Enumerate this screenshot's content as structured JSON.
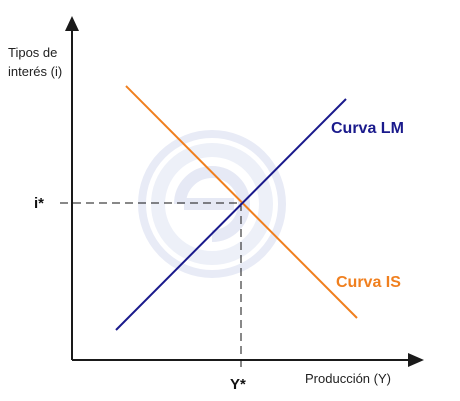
{
  "labels": {
    "y_axis_line1": "Tipos de",
    "y_axis_line2": "interés (i)",
    "x_axis": "Producción (Y)",
    "equilibrium_rate": "i*",
    "equilibrium_output": "Y*"
  },
  "curves": {
    "lm": {
      "label": "Curva LM",
      "color": "#1a1a8c"
    },
    "is": {
      "label": "Curva IS",
      "color": "#f07f1e"
    }
  },
  "colors": {
    "axis": "#1a1a1a",
    "guide": "#111111",
    "watermark": "#e6e9f5"
  },
  "icons": {
    "watermark": "circular-logo-watermark-icon"
  }
}
